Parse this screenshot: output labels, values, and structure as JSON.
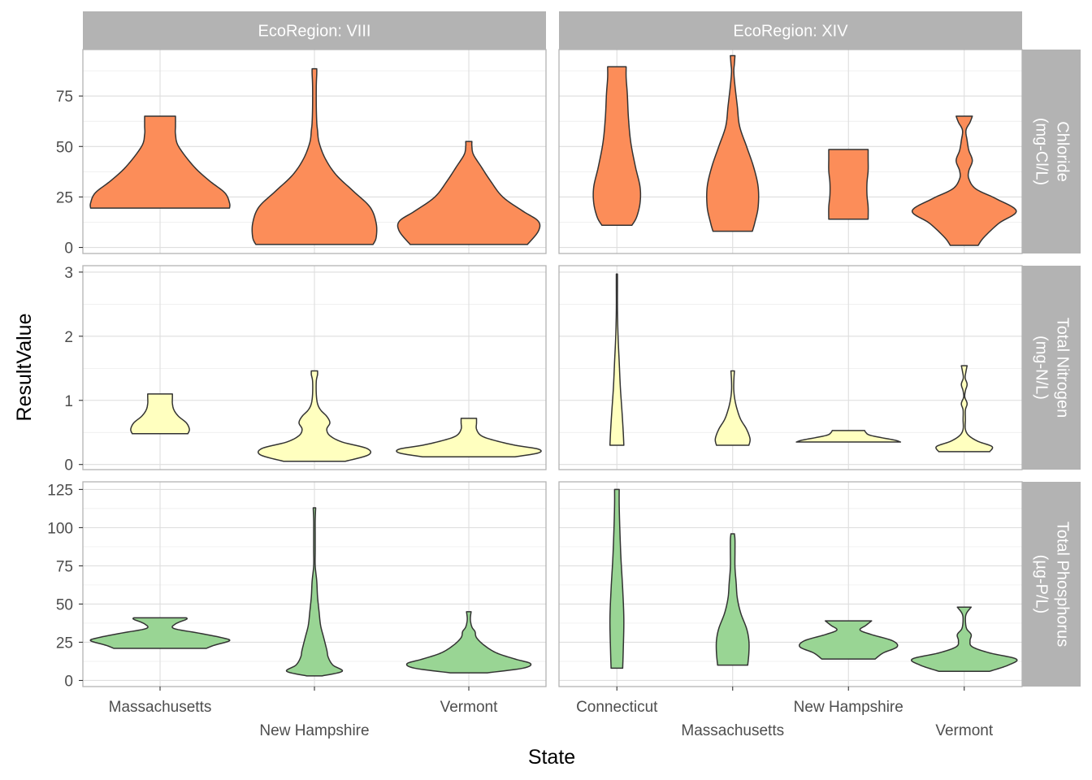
{
  "chart_data": {
    "type": "violin",
    "xlabel": "State",
    "ylabel": "ResultValue",
    "grid": true,
    "legend": "none",
    "columns": [
      {
        "strip": "EcoRegion: VIII",
        "categories": [
          "Massachusetts",
          "New Hampshire",
          "Vermont"
        ]
      },
      {
        "strip": "EcoRegion: XIV",
        "categories": [
          "Connecticut",
          "Massachusetts",
          "New Hampshire",
          "Vermont"
        ]
      }
    ],
    "rows": [
      {
        "strip_lines": [
          "Chloride",
          "(mg-Cl/L)"
        ],
        "color": "#fc8d59",
        "ylim": [
          -3,
          98
        ],
        "yticks": [
          0,
          25,
          50,
          75
        ],
        "ytick_labels": [
          "0",
          "25",
          "50",
          "75"
        ]
      },
      {
        "strip_lines": [
          "Total Nitrogen",
          "(mg-N/L)"
        ],
        "color": "#ffffbf",
        "ylim": [
          -0.08,
          3.1
        ],
        "yticks": [
          0,
          1,
          2,
          3
        ],
        "ytick_labels": [
          "0",
          "1",
          "2",
          "3"
        ]
      },
      {
        "strip_lines": [
          "Total Phosphorus",
          "(µg-P/L)"
        ],
        "color": "#99d594",
        "ylim": [
          -4,
          130
        ],
        "yticks": [
          0,
          25,
          50,
          75,
          100,
          125
        ],
        "ytick_labels": [
          "0",
          "25",
          "50",
          "75",
          "100",
          "125"
        ]
      }
    ],
    "violins": [
      {
        "row": 0,
        "col": 0,
        "state": "Massachusetts",
        "profile": [
          [
            19.5,
            0.45
          ],
          [
            22,
            0.45
          ],
          [
            27,
            0.42
          ],
          [
            33,
            0.32
          ],
          [
            40,
            0.22
          ],
          [
            50,
            0.12
          ],
          [
            56,
            0.1
          ],
          [
            60,
            0.1
          ],
          [
            65,
            0.1
          ]
        ]
      },
      {
        "row": 0,
        "col": 0,
        "state": "New Hampshire",
        "profile": [
          [
            1.5,
            0.38
          ],
          [
            5,
            0.4
          ],
          [
            12,
            0.4
          ],
          [
            20,
            0.36
          ],
          [
            28,
            0.25
          ],
          [
            36,
            0.14
          ],
          [
            44,
            0.07
          ],
          [
            52,
            0.03
          ],
          [
            58,
            0.02
          ],
          [
            62,
            0.015
          ],
          [
            70,
            0.012
          ],
          [
            80,
            0.012
          ],
          [
            86,
            0.015
          ],
          [
            88.5,
            0.015
          ]
        ]
      },
      {
        "row": 0,
        "col": 0,
        "state": "Vermont",
        "profile": [
          [
            1.5,
            0.38
          ],
          [
            8,
            0.45
          ],
          [
            13,
            0.45
          ],
          [
            18,
            0.35
          ],
          [
            25,
            0.22
          ],
          [
            33,
            0.14
          ],
          [
            40,
            0.08
          ],
          [
            46,
            0.03
          ],
          [
            50,
            0.02
          ],
          [
            52.5,
            0.02
          ]
        ]
      },
      {
        "row": 0,
        "col": 1,
        "state": "Connecticut",
        "profile": [
          [
            11,
            0.13
          ],
          [
            15,
            0.17
          ],
          [
            22,
            0.2
          ],
          [
            30,
            0.2
          ],
          [
            40,
            0.16
          ],
          [
            52,
            0.12
          ],
          [
            64,
            0.1
          ],
          [
            76,
            0.09
          ],
          [
            84,
            0.08
          ],
          [
            89.5,
            0.08
          ]
        ]
      },
      {
        "row": 0,
        "col": 1,
        "state": "Massachusetts",
        "profile": [
          [
            8,
            0.17
          ],
          [
            12,
            0.19
          ],
          [
            20,
            0.22
          ],
          [
            30,
            0.22
          ],
          [
            40,
            0.18
          ],
          [
            50,
            0.12
          ],
          [
            60,
            0.06
          ],
          [
            70,
            0.04
          ],
          [
            80,
            0.02
          ],
          [
            87,
            0.01
          ],
          [
            91,
            0.015
          ],
          [
            95,
            0.02
          ]
        ]
      },
      {
        "row": 0,
        "col": 1,
        "state": "New Hampshire",
        "profile": [
          [
            14,
            0.17
          ],
          [
            20,
            0.17
          ],
          [
            26,
            0.16
          ],
          [
            32,
            0.16
          ],
          [
            38,
            0.17
          ],
          [
            44,
            0.17
          ],
          [
            48.5,
            0.17
          ]
        ]
      },
      {
        "row": 0,
        "col": 1,
        "state": "Vermont",
        "profile": [
          [
            1,
            0.12
          ],
          [
            5,
            0.17
          ],
          [
            12,
            0.3
          ],
          [
            18,
            0.45
          ],
          [
            24,
            0.28
          ],
          [
            29,
            0.1
          ],
          [
            34,
            0.04
          ],
          [
            38,
            0.04
          ],
          [
            43,
            0.07
          ],
          [
            48,
            0.04
          ],
          [
            53,
            0.025
          ],
          [
            58,
            0.015
          ],
          [
            62,
            0.05
          ],
          [
            65,
            0.07
          ]
        ]
      },
      {
        "row": 1,
        "col": 0,
        "state": "Massachusetts",
        "profile": [
          [
            0.48,
            0.18
          ],
          [
            0.55,
            0.19
          ],
          [
            0.65,
            0.17
          ],
          [
            0.75,
            0.12
          ],
          [
            0.85,
            0.09
          ],
          [
            0.95,
            0.08
          ],
          [
            1.05,
            0.08
          ],
          [
            1.1,
            0.08
          ]
        ]
      },
      {
        "row": 1,
        "col": 0,
        "state": "New Hampshire",
        "profile": [
          [
            0.05,
            0.2
          ],
          [
            0.15,
            0.35
          ],
          [
            0.25,
            0.34
          ],
          [
            0.35,
            0.18
          ],
          [
            0.45,
            0.1
          ],
          [
            0.55,
            0.08
          ],
          [
            0.65,
            0.1
          ],
          [
            0.75,
            0.08
          ],
          [
            0.85,
            0.04
          ],
          [
            0.95,
            0.02
          ],
          [
            1.1,
            0.012
          ],
          [
            1.3,
            0.012
          ],
          [
            1.4,
            0.02
          ],
          [
            1.46,
            0.02
          ]
        ]
      },
      {
        "row": 1,
        "col": 0,
        "state": "Vermont",
        "profile": [
          [
            0.12,
            0.3
          ],
          [
            0.18,
            0.45
          ],
          [
            0.24,
            0.45
          ],
          [
            0.3,
            0.3
          ],
          [
            0.38,
            0.16
          ],
          [
            0.45,
            0.08
          ],
          [
            0.55,
            0.05
          ],
          [
            0.65,
            0.05
          ],
          [
            0.72,
            0.05
          ]
        ]
      },
      {
        "row": 1,
        "col": 1,
        "state": "Connecticut",
        "profile": [
          [
            0.3,
            0.06
          ],
          [
            0.5,
            0.055
          ],
          [
            0.8,
            0.045
          ],
          [
            1.2,
            0.03
          ],
          [
            1.6,
            0.02
          ],
          [
            2.0,
            0.01
          ],
          [
            2.4,
            0.005
          ],
          [
            2.8,
            0.005
          ],
          [
            2.97,
            0.005
          ]
        ]
      },
      {
        "row": 1,
        "col": 1,
        "state": "Massachusetts",
        "profile": [
          [
            0.3,
            0.14
          ],
          [
            0.4,
            0.15
          ],
          [
            0.55,
            0.12
          ],
          [
            0.7,
            0.07
          ],
          [
            0.85,
            0.04
          ],
          [
            1.0,
            0.02
          ],
          [
            1.15,
            0.01
          ],
          [
            1.3,
            0.01
          ],
          [
            1.46,
            0.015
          ]
        ]
      },
      {
        "row": 1,
        "col": 1,
        "state": "New Hampshire",
        "profile": [
          [
            0.35,
            0.45
          ],
          [
            0.38,
            0.4
          ],
          [
            0.42,
            0.28
          ],
          [
            0.46,
            0.18
          ],
          [
            0.5,
            0.15
          ],
          [
            0.53,
            0.14
          ]
        ]
      },
      {
        "row": 1,
        "col": 1,
        "state": "Vermont",
        "profile": [
          [
            0.2,
            0.22
          ],
          [
            0.28,
            0.24
          ],
          [
            0.36,
            0.12
          ],
          [
            0.45,
            0.04
          ],
          [
            0.55,
            0.01
          ],
          [
            0.7,
            0.01
          ],
          [
            0.85,
            0.01
          ],
          [
            0.95,
            0.025
          ],
          [
            1.05,
            0.005
          ],
          [
            1.15,
            0.01
          ],
          [
            1.25,
            0.025
          ],
          [
            1.35,
            0.008
          ],
          [
            1.45,
            0.015
          ],
          [
            1.54,
            0.025
          ]
        ]
      },
      {
        "row": 2,
        "col": 0,
        "state": "Massachusetts",
        "profile": [
          [
            21,
            0.3
          ],
          [
            23,
            0.35
          ],
          [
            26,
            0.45
          ],
          [
            28,
            0.4
          ],
          [
            31,
            0.25
          ],
          [
            34,
            0.09
          ],
          [
            37,
            0.1
          ],
          [
            40,
            0.17
          ],
          [
            41,
            0.17
          ]
        ]
      },
      {
        "row": 2,
        "col": 0,
        "state": "New Hampshire",
        "profile": [
          [
            3,
            0.05
          ],
          [
            6,
            0.18
          ],
          [
            10,
            0.12
          ],
          [
            15,
            0.09
          ],
          [
            20,
            0.08
          ],
          [
            28,
            0.06
          ],
          [
            36,
            0.04
          ],
          [
            45,
            0.03
          ],
          [
            55,
            0.02
          ],
          [
            65,
            0.015
          ],
          [
            75,
            0.005
          ],
          [
            85,
            0.005
          ],
          [
            95,
            0.005
          ],
          [
            105,
            0.005
          ],
          [
            113,
            0.008
          ]
        ]
      },
      {
        "row": 2,
        "col": 0,
        "state": "Vermont",
        "profile": [
          [
            5,
            0.12
          ],
          [
            8,
            0.35
          ],
          [
            11,
            0.4
          ],
          [
            14,
            0.3
          ],
          [
            18,
            0.18
          ],
          [
            23,
            0.1
          ],
          [
            28,
            0.05
          ],
          [
            32,
            0.04
          ],
          [
            35,
            0.02
          ],
          [
            40,
            0.01
          ],
          [
            45,
            0.015
          ]
        ]
      },
      {
        "row": 2,
        "col": 1,
        "state": "Connecticut",
        "profile": [
          [
            8,
            0.05
          ],
          [
            20,
            0.055
          ],
          [
            40,
            0.06
          ],
          [
            60,
            0.05
          ],
          [
            80,
            0.035
          ],
          [
            100,
            0.025
          ],
          [
            115,
            0.02
          ],
          [
            125,
            0.02
          ]
        ]
      },
      {
        "row": 2,
        "col": 1,
        "state": "Massachusetts",
        "profile": [
          [
            10,
            0.13
          ],
          [
            18,
            0.14
          ],
          [
            26,
            0.14
          ],
          [
            34,
            0.12
          ],
          [
            44,
            0.07
          ],
          [
            54,
            0.04
          ],
          [
            64,
            0.03
          ],
          [
            74,
            0.02
          ],
          [
            84,
            0.02
          ],
          [
            92,
            0.02
          ],
          [
            96,
            0.015
          ]
        ]
      },
      {
        "row": 2,
        "col": 1,
        "state": "New Hampshire",
        "profile": [
          [
            14,
            0.23
          ],
          [
            18,
            0.3
          ],
          [
            22,
            0.42
          ],
          [
            26,
            0.38
          ],
          [
            30,
            0.2
          ],
          [
            33,
            0.1
          ],
          [
            36,
            0.15
          ],
          [
            39,
            0.2
          ]
        ]
      },
      {
        "row": 2,
        "col": 1,
        "state": "Vermont",
        "profile": [
          [
            6,
            0.22
          ],
          [
            10,
            0.38
          ],
          [
            14,
            0.45
          ],
          [
            18,
            0.22
          ],
          [
            22,
            0.07
          ],
          [
            26,
            0.05
          ],
          [
            30,
            0.06
          ],
          [
            34,
            0.02
          ],
          [
            40,
            0.01
          ],
          [
            44,
            0.02
          ],
          [
            48,
            0.06
          ]
        ]
      }
    ]
  }
}
